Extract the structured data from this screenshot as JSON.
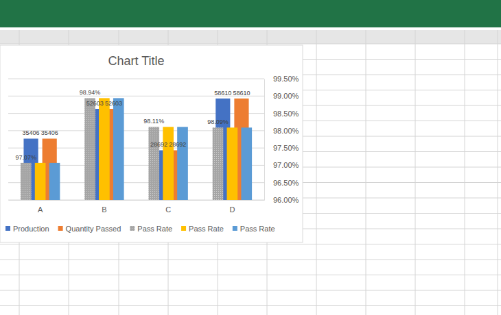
{
  "chart_data": {
    "type": "bar",
    "title": "Chart Title",
    "categories": [
      "A",
      "B",
      "C",
      "D"
    ],
    "series": [
      {
        "name": "Production",
        "color": "#4472c4",
        "values": [
          35406,
          52603,
          28692,
          58610
        ],
        "data_labels": true
      },
      {
        "name": "Quantity Passed",
        "color": "#ed7d31",
        "values": [
          35406,
          52603,
          28692,
          58610
        ],
        "data_labels": true
      },
      {
        "name": "Pass Rate",
        "color": "#a5a5a5",
        "axis": "y2",
        "values": [
          97.07,
          98.94,
          98.11,
          98.09
        ],
        "value_labels": [
          "97.07%",
          "98.94%",
          "98.11%",
          "98.09%"
        ],
        "data_labels": true
      },
      {
        "name": "Pass Rate",
        "color": "#ffc000",
        "axis": "y2",
        "values": [
          97.07,
          98.94,
          98.11,
          98.09
        ],
        "data_labels": false
      },
      {
        "name": "Pass Rate",
        "color": "#5b9bd5",
        "axis": "y2",
        "values": [
          97.07,
          98.94,
          98.11,
          98.09
        ],
        "data_labels": false
      }
    ],
    "ylim": [
      0,
      70000
    ],
    "y2lim": [
      96,
      99.5
    ],
    "y2ticks": [
      {
        "value": 96,
        "label": "96.00%"
      },
      {
        "value": 96.5,
        "label": "96.50%"
      },
      {
        "value": 97,
        "label": "97.00%"
      },
      {
        "value": 97.5,
        "label": "97.50%"
      },
      {
        "value": 98,
        "label": "98.00%"
      },
      {
        "value": 98.5,
        "label": "98.50%"
      },
      {
        "value": 99,
        "label": "99.00%"
      },
      {
        "value": 99.5,
        "label": "99.50%"
      }
    ],
    "grid": true,
    "legend": "bottom"
  }
}
